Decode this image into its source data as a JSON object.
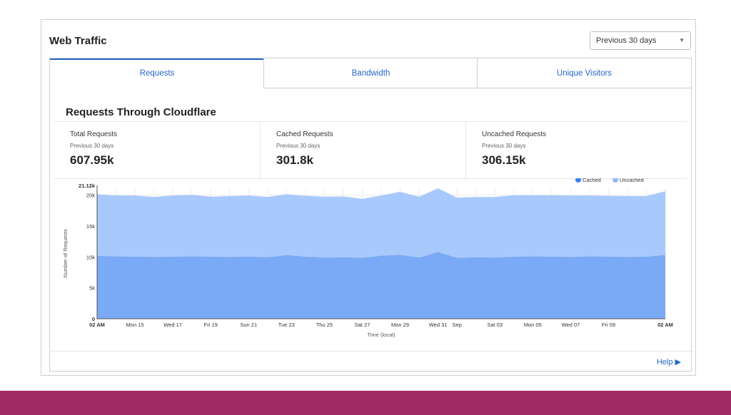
{
  "card": {
    "title": "Web Traffic"
  },
  "range_select": {
    "value": "Previous 30 days",
    "icon": "chevron-down-icon"
  },
  "tabs": [
    {
      "label": "Requests",
      "active": true
    },
    {
      "label": "Bandwidth",
      "active": false
    },
    {
      "label": "Unique Visitors",
      "active": false
    }
  ],
  "section": {
    "title": "Requests Through Cloudflare"
  },
  "stats": [
    {
      "label": "Total Requests",
      "period": "Previous 30 days",
      "value": "607.95k"
    },
    {
      "label": "Cached Requests",
      "period": "Previous 30 days",
      "value": "301.8k"
    },
    {
      "label": "Uncached Requests",
      "period": "Previous 30 days",
      "value": "306.15k"
    }
  ],
  "help": {
    "label": "Help",
    "icon": "caret-right-icon"
  },
  "colors": {
    "accent": "#2566c8",
    "cached": "#7aa9f5",
    "uncached": "#a8c9fb",
    "legend_cached": "#3b82f0",
    "legend_uncached": "#8fb8f8",
    "brand_band": "#a12a65"
  },
  "chart_data": {
    "type": "area",
    "stacked": true,
    "ylabel": "Number of Requests",
    "xlabel": "Time (local)",
    "ylim": [
      0,
      21120
    ],
    "y_ticks": [
      "0",
      "5k",
      "10k",
      "15k",
      "20k",
      "21.12k"
    ],
    "x_tick_labels": [
      "02 AM",
      "Mon 15",
      "Wed 17",
      "Fri 19",
      "Sun 21",
      "Tue 23",
      "Thu 25",
      "Sat 27",
      "Mon 29",
      "Wed 31",
      "Sep",
      "Sat 03",
      "Mon 05",
      "Wed 07",
      "Fri 09",
      "02 AM"
    ],
    "grid": true,
    "legend_position": "top-right",
    "x": [
      0,
      1,
      2,
      3,
      4,
      5,
      6,
      7,
      8,
      9,
      10,
      11,
      12,
      13,
      14,
      15,
      16,
      17,
      18,
      19,
      20,
      21,
      22,
      23,
      24,
      25,
      26,
      27,
      28,
      29,
      30
    ],
    "series": [
      {
        "name": "Cached",
        "values": [
          10200,
          10100,
          10050,
          10000,
          10050,
          10100,
          10050,
          10000,
          10050,
          9950,
          10300,
          10050,
          9900,
          9950,
          9850,
          10200,
          10350,
          9900,
          10800,
          9850,
          9950,
          9900,
          10050,
          10100,
          10050,
          10000,
          10100,
          10050,
          10000,
          10050,
          10300
        ]
      },
      {
        "name": "Uncached",
        "values": [
          9950,
          9850,
          9900,
          9700,
          9900,
          9950,
          9700,
          9850,
          9900,
          9750,
          9850,
          9850,
          9850,
          9850,
          9550,
          9750,
          10200,
          9850,
          10300,
          9750,
          9750,
          9800,
          9950,
          9900,
          9950,
          9950,
          9850,
          9850,
          9850,
          9800,
          10350
        ]
      }
    ]
  }
}
